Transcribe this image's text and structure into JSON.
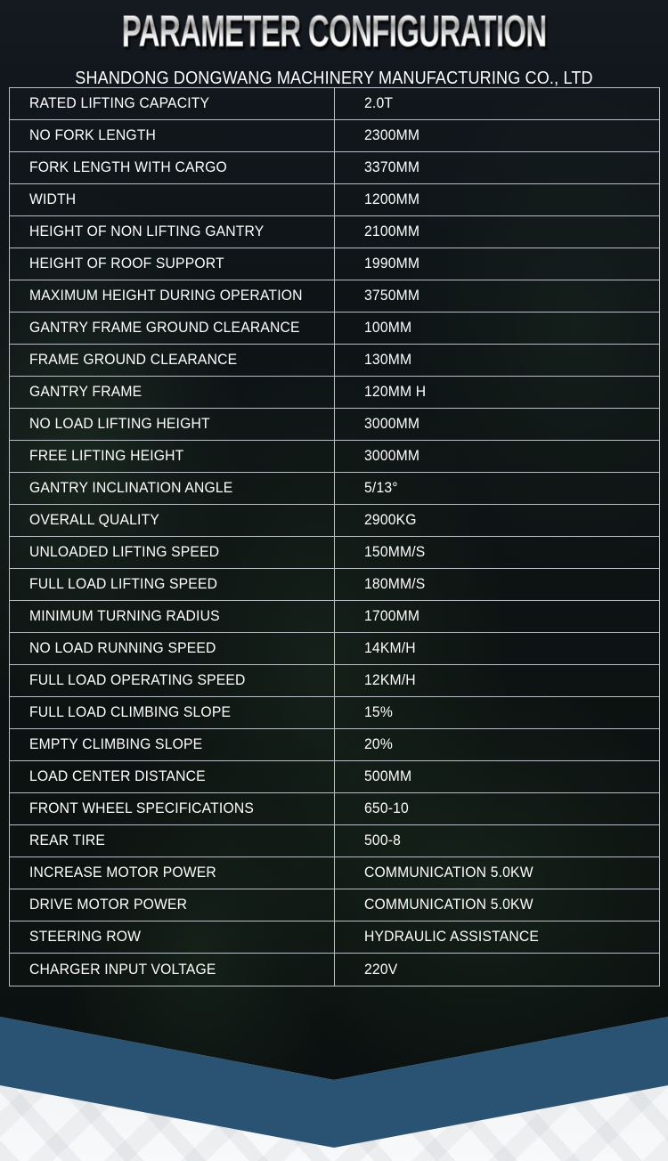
{
  "header": {
    "title": "PARAMETER CONFIGURATION",
    "company": "SHANDONG DONGWANG MACHINERY MANUFACTURING CO., LTD"
  },
  "table": {
    "rows": [
      {
        "label": "RATED LIFTING CAPACITY",
        "value": "2.0T"
      },
      {
        "label": "NO FORK LENGTH",
        "value": "2300MM"
      },
      {
        "label": "FORK LENGTH WITH CARGO",
        "value": "3370MM"
      },
      {
        "label": "WIDTH",
        "value": "1200MM"
      },
      {
        "label": "HEIGHT OF NON LIFTING GANTRY",
        "value": "2100MM"
      },
      {
        "label": "HEIGHT OF ROOF SUPPORT",
        "value": "1990MM"
      },
      {
        "label": "MAXIMUM HEIGHT DURING OPERATION",
        "value": "3750MM"
      },
      {
        "label": "GANTRY FRAME GROUND CLEARANCE",
        "value": "100MM"
      },
      {
        "label": "FRAME GROUND CLEARANCE",
        "value": "130MM"
      },
      {
        "label": "GANTRY FRAME",
        "value": "120MM H"
      },
      {
        "label": "NO LOAD LIFTING HEIGHT",
        "value": "3000MM"
      },
      {
        "label": "FREE LIFTING HEIGHT",
        "value": "3000MM"
      },
      {
        "label": "GANTRY INCLINATION ANGLE",
        "value": "5/13°"
      },
      {
        "label": "OVERALL QUALITY",
        "value": "2900KG"
      },
      {
        "label": "UNLOADED LIFTING SPEED",
        "value": "150MM/S"
      },
      {
        "label": "FULL LOAD LIFTING SPEED",
        "value": "180MM/S"
      },
      {
        "label": "MINIMUM TURNING RADIUS",
        "value": "1700MM"
      },
      {
        "label": "NO LOAD RUNNING SPEED",
        "value": "14KM/H"
      },
      {
        "label": "FULL LOAD OPERATING SPEED",
        "value": "12KM/H"
      },
      {
        "label": "FULL LOAD CLIMBING SLOPE",
        "value": "15%"
      },
      {
        "label": "EMPTY CLIMBING SLOPE",
        "value": "20%"
      },
      {
        "label": "LOAD CENTER DISTANCE",
        "value": "500MM"
      },
      {
        "label": "FRONT WHEEL SPECIFICATIONS",
        "value": "650-10"
      },
      {
        "label": "REAR TIRE",
        "value": "500-8"
      },
      {
        "label": "INCREASE MOTOR POWER",
        "value": "COMMUNICATION 5.0KW"
      },
      {
        "label": "DRIVE MOTOR POWER",
        "value": "COMMUNICATION 5.0KW"
      },
      {
        "label": "STEERING ROW",
        "value": "HYDRAULIC ASSISTANCE"
      },
      {
        "label": "CHARGER INPUT VOLTAGE",
        "value": "220V"
      }
    ]
  },
  "colors": {
    "accent_blue": "#2c5677",
    "table_border": "#d0d6dc",
    "background_dark": "#0e1416",
    "text": "#ffffff"
  }
}
